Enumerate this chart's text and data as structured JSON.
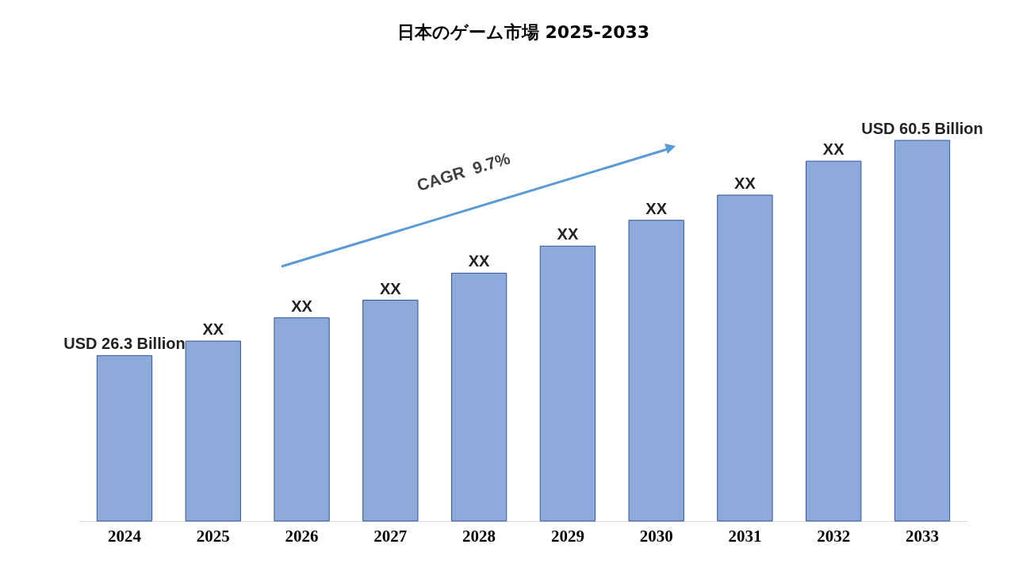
{
  "chart_data": {
    "type": "bar",
    "title": "日本のゲーム市場 2025-2033",
    "categories": [
      "2024",
      "2025",
      "2026",
      "2027",
      "2028",
      "2029",
      "2030",
      "2031",
      "2032",
      "2033"
    ],
    "values": [
      26.3,
      28.6,
      32.3,
      35.1,
      39.4,
      43.7,
      47.8,
      51.8,
      57.2,
      60.5
    ],
    "value_labels": [
      "USD 26.3 Billion",
      "XX",
      "XX",
      "XX",
      "XX",
      "XX",
      "XX",
      "XX",
      "XX",
      "USD 60.5 Billion"
    ],
    "color": "#8eaadb",
    "annotations": [
      "CAGR  9.7%"
    ]
  }
}
